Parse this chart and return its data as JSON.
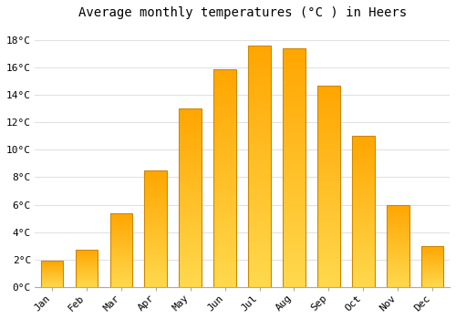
{
  "title": "Average monthly temperatures (°C ) in Heers",
  "months": [
    "Jan",
    "Feb",
    "Mar",
    "Apr",
    "May",
    "Jun",
    "Jul",
    "Aug",
    "Sep",
    "Oct",
    "Nov",
    "Dec"
  ],
  "values": [
    1.9,
    2.7,
    5.4,
    8.5,
    13.0,
    15.9,
    17.6,
    17.4,
    14.7,
    11.0,
    6.0,
    3.0
  ],
  "bar_color_bottom": "#FFD84D",
  "bar_color_top": "#FFA500",
  "bar_edge_color": "#CC8800",
  "ylim": [
    0,
    19
  ],
  "yticks": [
    0,
    2,
    4,
    6,
    8,
    10,
    12,
    14,
    16,
    18
  ],
  "ytick_labels": [
    "0°C",
    "2°C",
    "4°C",
    "6°C",
    "8°C",
    "10°C",
    "12°C",
    "14°C",
    "16°C",
    "18°C"
  ],
  "background_color": "#FFFFFF",
  "grid_color": "#E0E0E8",
  "title_fontsize": 10,
  "tick_fontsize": 8,
  "bar_width": 0.65
}
